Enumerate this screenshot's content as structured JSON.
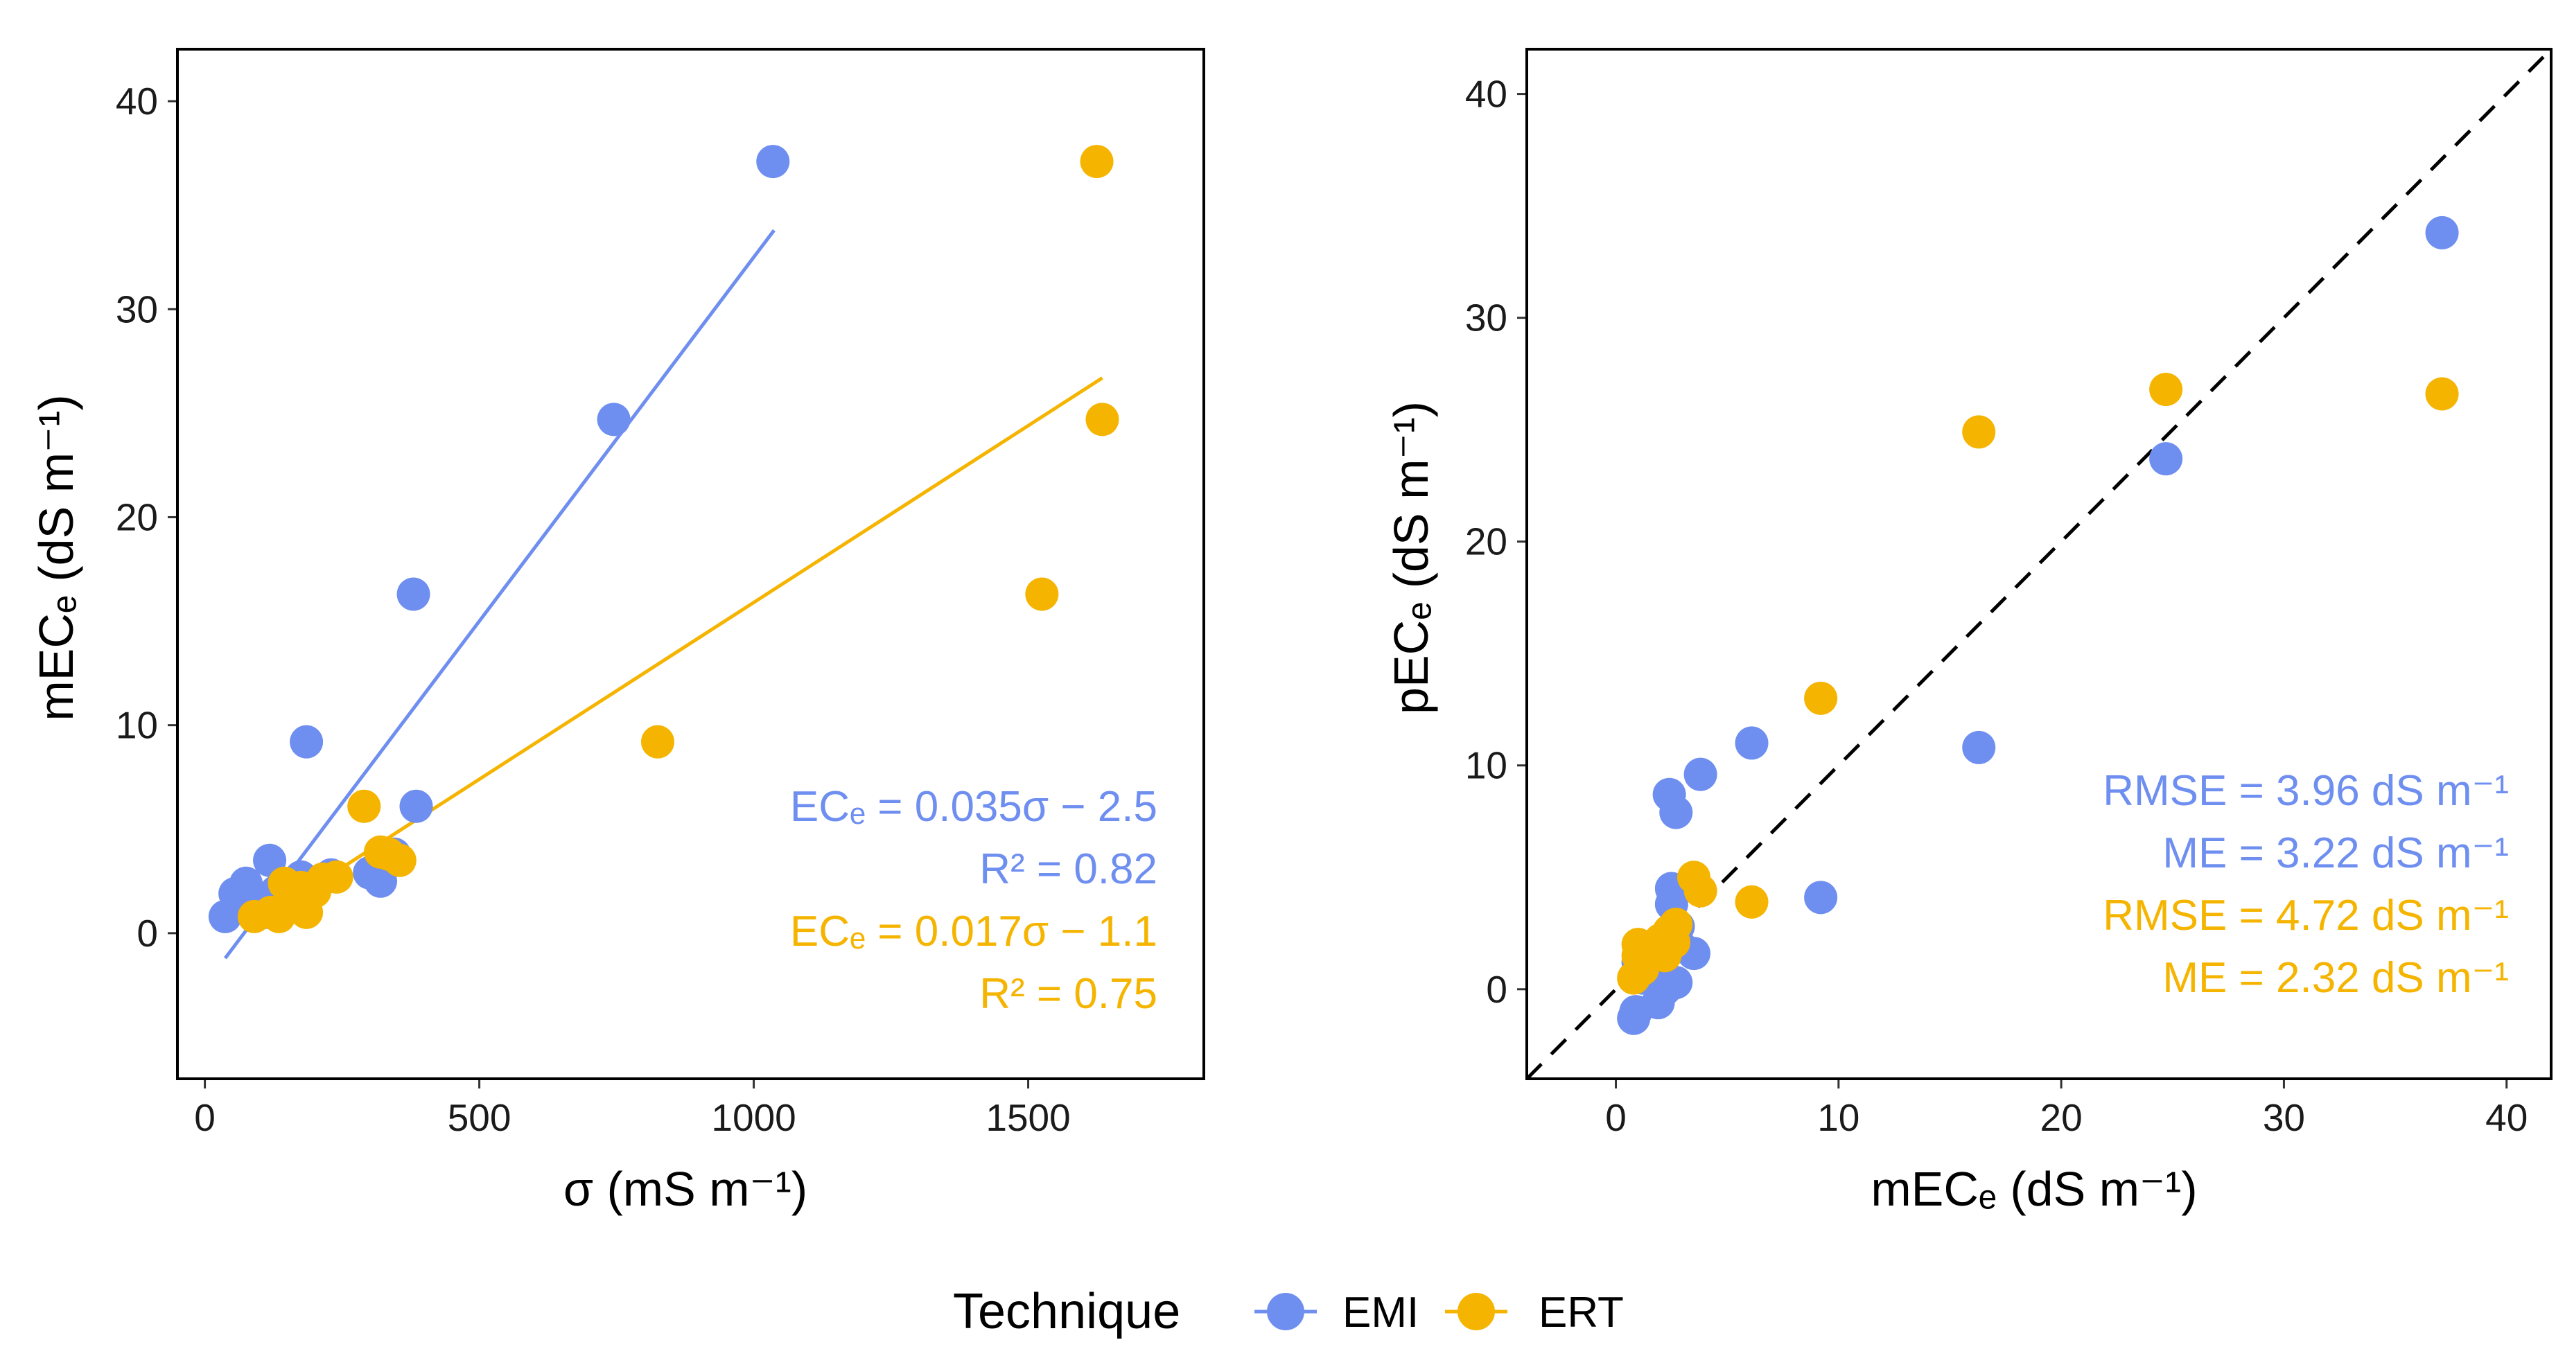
{
  "colors": {
    "EMI": "#6e8ef0",
    "ERT": "#f5b400",
    "frame": "#000000",
    "identity": "#000000"
  },
  "chart_data": [
    {
      "type": "scatter",
      "panel": "left",
      "xlabel": "σ (mS m⁻¹)",
      "ylabel": "mECₑ (dS m⁻¹)",
      "xlim": [
        -50,
        1820
      ],
      "ylim": [
        -7,
        42.5
      ],
      "xticks": [
        0,
        500,
        1000,
        1500
      ],
      "yticks": [
        0,
        10,
        20,
        30,
        40
      ],
      "xtick_labels": [
        "0",
        "500",
        "1000",
        "1500"
      ],
      "ytick_labels": [
        "0",
        "10",
        "20",
        "30",
        "40"
      ],
      "series": [
        {
          "name": "EMI",
          "points": [
            [
              37,
              0.8
            ],
            [
              55,
              1.9
            ],
            [
              75,
              2.4
            ],
            [
              85,
              1.2
            ],
            [
              100,
              1.6
            ],
            [
              110,
              1.0
            ],
            [
              118,
              3.5
            ],
            [
              130,
              2.0
            ],
            [
              140,
              1.3
            ],
            [
              160,
              1.8
            ],
            [
              175,
              2.7
            ],
            [
              185,
              9.2
            ],
            [
              200,
              2.2
            ],
            [
              230,
              2.8
            ],
            [
              300,
              2.9
            ],
            [
              320,
              2.5
            ],
            [
              345,
              3.8
            ],
            [
              380,
              16.3
            ],
            [
              385,
              6.1
            ],
            [
              745,
              24.7
            ],
            [
              1035,
              37.1
            ]
          ],
          "fit": {
            "x": [
              37,
              1037
            ],
            "slope": 0.035,
            "intercept": -2.5
          }
        },
        {
          "name": "ERT",
          "points": [
            [
              90,
              0.8
            ],
            [
              120,
              1.0
            ],
            [
              135,
              0.8
            ],
            [
              145,
              2.4
            ],
            [
              160,
              1.5
            ],
            [
              175,
              2.2
            ],
            [
              185,
              1.0
            ],
            [
              200,
              2.0
            ],
            [
              215,
              2.6
            ],
            [
              240,
              2.7
            ],
            [
              290,
              6.1
            ],
            [
              320,
              3.9
            ],
            [
              335,
              3.8
            ],
            [
              355,
              3.5
            ],
            [
              825,
              9.2
            ],
            [
              1525,
              16.3
            ],
            [
              1625,
              37.1
            ],
            [
              1635,
              24.7
            ]
          ],
          "fit": {
            "x": [
              85,
              1635
            ],
            "slope": 0.017,
            "intercept": -1.1
          }
        }
      ],
      "annotations": [
        {
          "text": "ECₑ = 0.035σ − 2.5",
          "series": "EMI"
        },
        {
          "text": "R² = 0.82",
          "series": "EMI"
        },
        {
          "text": "ECₑ = 0.017σ − 1.1",
          "series": "ERT"
        },
        {
          "text": "R² = 0.75",
          "series": "ERT"
        }
      ]
    },
    {
      "type": "scatter",
      "panel": "right",
      "xlabel": "mECₑ (dS m⁻¹)",
      "ylabel": "pECₑ (dS m⁻¹)",
      "xlim": [
        -4,
        42
      ],
      "ylim": [
        -4,
        42
      ],
      "xticks": [
        0,
        10,
        20,
        30,
        40
      ],
      "yticks": [
        0,
        10,
        20,
        30,
        40
      ],
      "xtick_labels": [
        "0",
        "10",
        "20",
        "30",
        "40"
      ],
      "ytick_labels": [
        "0",
        "10",
        "20",
        "30",
        "40"
      ],
      "identity_line": true,
      "series": [
        {
          "name": "EMI",
          "points": [
            [
              0.8,
              -1.3
            ],
            [
              0.9,
              -1.0
            ],
            [
              1.0,
              1.2
            ],
            [
              1.2,
              0.5
            ],
            [
              1.6,
              0.7
            ],
            [
              1.9,
              -0.6
            ],
            [
              2.0,
              1.5
            ],
            [
              2.2,
              0.0
            ],
            [
              2.4,
              8.7
            ],
            [
              2.5,
              4.5
            ],
            [
              2.5,
              3.8
            ],
            [
              2.7,
              7.9
            ],
            [
              2.7,
              0.3
            ],
            [
              2.8,
              2.8
            ],
            [
              2.9,
              1.9
            ],
            [
              3.5,
              1.6
            ],
            [
              3.8,
              9.6
            ],
            [
              6.1,
              11.0
            ],
            [
              9.2,
              4.1
            ],
            [
              16.3,
              10.8
            ],
            [
              24.7,
              23.7
            ],
            [
              37.1,
              33.8
            ]
          ]
        },
        {
          "name": "ERT",
          "points": [
            [
              0.8,
              0.5
            ],
            [
              1.0,
              2.0
            ],
            [
              1.0,
              1.5
            ],
            [
              1.2,
              0.9
            ],
            [
              1.6,
              1.8
            ],
            [
              2.0,
              2.2
            ],
            [
              2.2,
              1.5
            ],
            [
              2.4,
              2.6
            ],
            [
              2.6,
              2.1
            ],
            [
              2.7,
              2.9
            ],
            [
              3.5,
              5.0
            ],
            [
              3.8,
              4.4
            ],
            [
              6.1,
              3.9
            ],
            [
              9.2,
              13.0
            ],
            [
              16.3,
              24.9
            ],
            [
              24.7,
              26.8
            ],
            [
              37.1,
              26.6
            ]
          ]
        }
      ],
      "annotations": [
        {
          "text": "RMSE = 3.96 dS m⁻¹",
          "series": "EMI"
        },
        {
          "text": "ME = 3.22 dS m⁻¹",
          "series": "EMI"
        },
        {
          "text": "RMSE = 4.72 dS m⁻¹",
          "series": "ERT"
        },
        {
          "text": "ME = 2.32 dS m⁻¹",
          "series": "ERT"
        }
      ]
    }
  ],
  "legend": {
    "title": "Technique",
    "items": [
      {
        "label": "EMI",
        "series": "EMI"
      },
      {
        "label": "ERT",
        "series": "ERT"
      }
    ]
  }
}
